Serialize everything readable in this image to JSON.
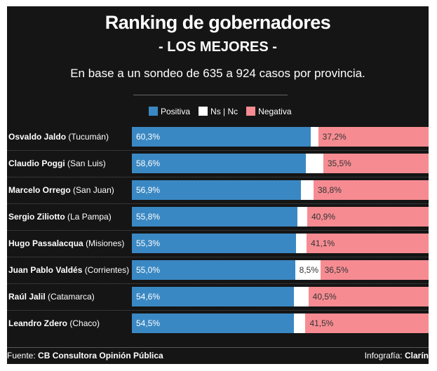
{
  "title": "Ranking de gobernadores",
  "subtitle": "- LOS MEJORES -",
  "description": "En base a un sondeo de 635 a 924 casos por provincia.",
  "footer": {
    "source_label": "Fuente:",
    "source": "CB Consultora Opinión Pública",
    "credit_label": "Infografía:",
    "credit": "Clarín"
  },
  "chart_data": {
    "type": "bar",
    "orientation": "horizontal",
    "stacked": true,
    "xlim": [
      0,
      100
    ],
    "legend": [
      "Positiva",
      "Ns | Nc",
      "Negativa"
    ],
    "legend_placement": "top",
    "colors": {
      "Positiva": "#3a88c3",
      "Ns | Nc": "#ffffff",
      "Negativa": "#f68c92"
    },
    "rows": [
      {
        "name": "Osvaldo Jaldo",
        "province": "(Tucumán)",
        "positiva": 60.3,
        "nsnc": 2.5,
        "negativa": 37.2,
        "labels": [
          "60,3%",
          "",
          "37,2%"
        ]
      },
      {
        "name": "Claudio Poggi",
        "province": "(San Luis)",
        "positiva": 58.6,
        "nsnc": 5.9,
        "negativa": 35.5,
        "labels": [
          "58,6%",
          "",
          "35,5%"
        ]
      },
      {
        "name": "Marcelo Orrego",
        "province": "(San Juan)",
        "positiva": 56.9,
        "nsnc": 4.3,
        "negativa": 38.8,
        "labels": [
          "56,9%",
          "",
          "38,8%"
        ]
      },
      {
        "name": "Sergio Ziliotto",
        "province": "(La Pampa)",
        "positiva": 55.8,
        "nsnc": 3.3,
        "negativa": 40.9,
        "labels": [
          "55,8%",
          "",
          "40,9%"
        ]
      },
      {
        "name": "Hugo Passalacqua",
        "province": "(Misiones)",
        "positiva": 55.3,
        "nsnc": 3.6,
        "negativa": 41.1,
        "labels": [
          "55,3%",
          "",
          "41,1%"
        ]
      },
      {
        "name": "Juan Pablo Valdés",
        "province": "(Corrientes)",
        "positiva": 55.0,
        "nsnc": 8.5,
        "negativa": 36.5,
        "labels": [
          "55,0%",
          "8,5%",
          "36,5%"
        ]
      },
      {
        "name": "Raúl Jalil",
        "province": "(Catamarca)",
        "positiva": 54.6,
        "nsnc": 4.9,
        "negativa": 40.5,
        "labels": [
          "54,6%",
          "",
          "40,5%"
        ]
      },
      {
        "name": "Leandro Zdero",
        "province": "(Chaco)",
        "positiva": 54.5,
        "nsnc": 4.0,
        "negativa": 41.5,
        "labels": [
          "54,5%",
          "",
          "41,5%"
        ]
      }
    ]
  }
}
